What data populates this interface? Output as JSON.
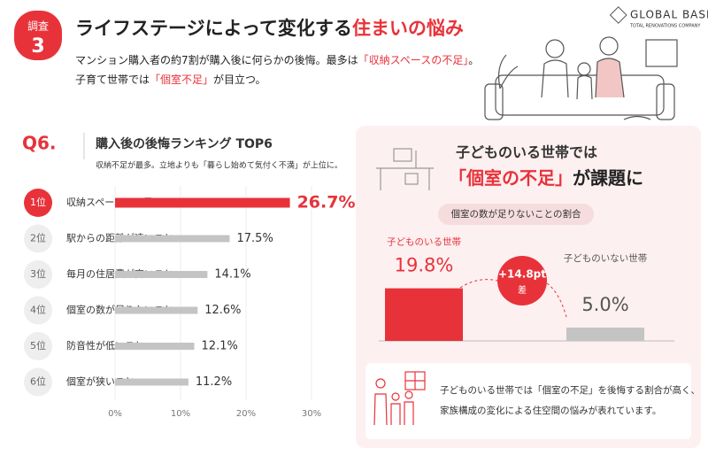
{
  "header": {
    "badge_label": "調査",
    "badge_number": "3",
    "title": [
      "ライフステージによって変化する",
      "住まいの悩み"
    ],
    "lead": [
      [
        "マンション購入者の約7割が購入後に何らかの後悔。最多は",
        "「収納スペースの不足」",
        "。"
      ],
      [
        "子育て世帯では",
        "「個室不足」",
        "が目立つ。"
      ]
    ]
  },
  "logo": {
    "name": "GLOBAL BASE",
    "tagline": "TOTAL RENOVATIONS COMPANY"
  },
  "chart_data": [
    {
      "type": "barh",
      "question_label": "Q6.",
      "title": "購入後の後悔ランキング TOP6",
      "subtitle": "収納不足が最多。立地よりも「暮らし始めて気付く不満」が上位に。",
      "ranks": [
        "1位",
        "2位",
        "3位",
        "4位",
        "5位",
        "6位"
      ],
      "categories": [
        "収納スペースの不足",
        "駅からの距離が遠いこと",
        "毎月の住居費が高いこと",
        "個室の数が足りないこと",
        "防音性が低いこと",
        "個室が狭いこと"
      ],
      "values": [
        26.7,
        17.5,
        14.1,
        12.6,
        12.1,
        11.2
      ],
      "value_labels": [
        "26.7%",
        "17.5%",
        "14.1%",
        "12.6%",
        "12.1%",
        "11.2%"
      ],
      "colors": [
        "#e8323a",
        "#c4c4c4",
        "#c4c4c4",
        "#c4c4c4",
        "#c4c4c4",
        "#c4c4c4"
      ],
      "xlim": [
        0,
        30
      ],
      "xticks": [
        {
          "value": 0,
          "label": "0%"
        },
        {
          "value": 10,
          "label": "10%"
        },
        {
          "value": 20,
          "label": "20%"
        },
        {
          "value": 30,
          "label": "30%"
        }
      ],
      "grid": true
    },
    {
      "type": "bar",
      "title": "子どものいる世帯では",
      "headline": [
        "「個室の不足」",
        "が課題に"
      ],
      "subtitle": "個室の数が足りないことの割合",
      "categories": [
        "子どものいる世帯",
        "子どものいない世帯"
      ],
      "values": [
        19.8,
        5.0
      ],
      "value_labels": [
        "19.8%",
        "5.0%"
      ],
      "colors": [
        "#e8323a",
        "#c4c4c4"
      ],
      "annotation": {
        "label": "+14.8pt",
        "sublabel": "差"
      }
    }
  ],
  "note": [
    "子どものいる世帯では「個室の不足」を後悔する割合が高く、",
    "家族構成の変化による住空間の悩みが表れています。"
  ]
}
